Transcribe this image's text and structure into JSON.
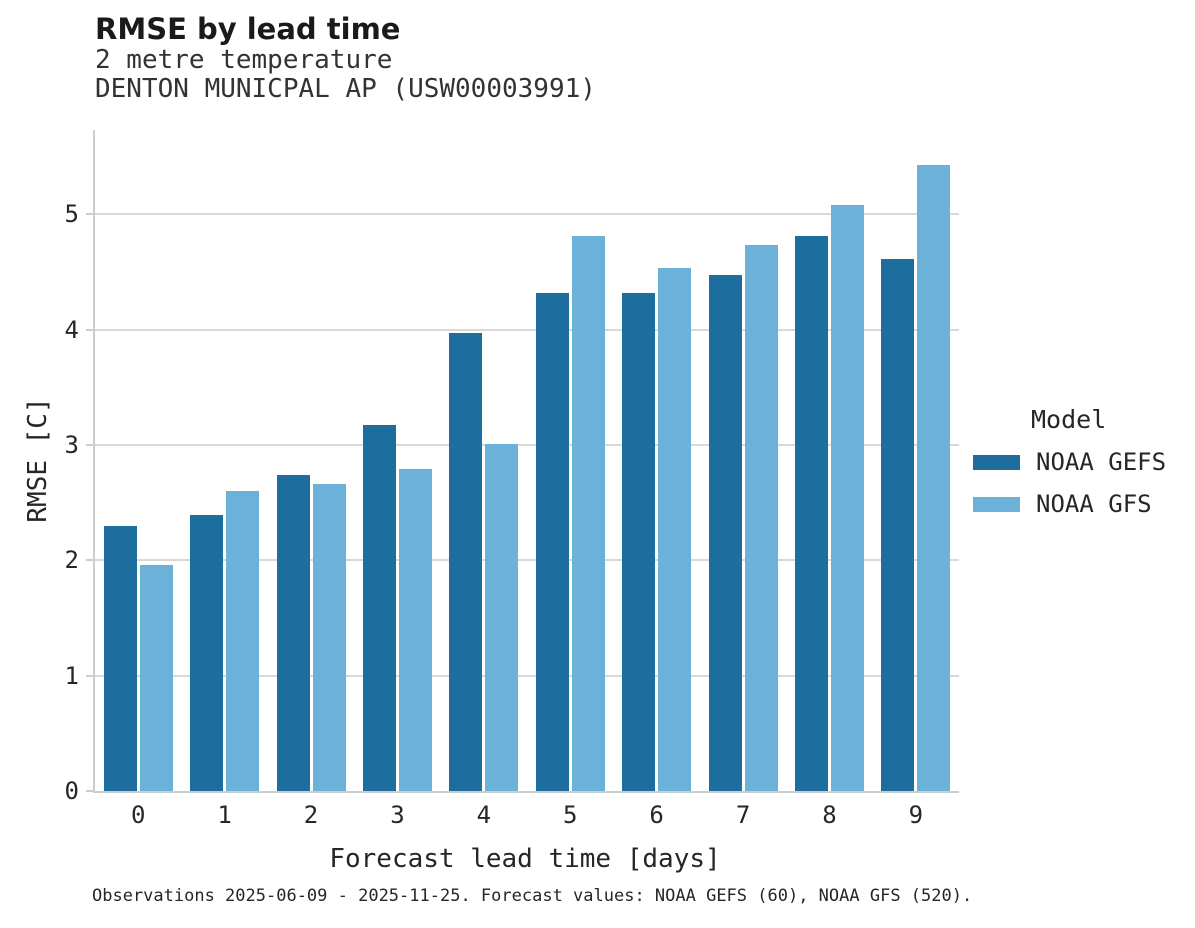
{
  "header": {
    "title": "RMSE by lead time",
    "subtitle1": "2 metre temperature",
    "subtitle2": "DENTON MUNICPAL AP (USW00003991)"
  },
  "axes": {
    "xlabel": "Forecast lead time [days]",
    "ylabel": "RMSE [C]"
  },
  "legend": {
    "title": "Model",
    "entries": [
      {
        "label": "NOAA GEFS",
        "color": "#1d6e9e"
      },
      {
        "label": "NOAA GFS",
        "color": "#6cb1d8"
      }
    ]
  },
  "footer": {
    "text": "Observations 2025-06-09 - 2025-11-25. Forecast values: NOAA GEFS (60), NOAA GFS (520)."
  },
  "colors": {
    "gefs_dark_blue": "#1d6e9e",
    "gfs_light_blue": "#6cb1d8",
    "gridline": "#d9d9d9",
    "axis_spine": "#c9ced1",
    "text": "#262626"
  },
  "chart_data": {
    "type": "bar",
    "title": "RMSE by lead time",
    "subtitle": "2 metre temperature, DENTON MUNICPAL AP (USW00003991)",
    "xlabel": "Forecast lead time [days]",
    "ylabel": "RMSE [C]",
    "categories": [
      "0",
      "1",
      "2",
      "3",
      "4",
      "5",
      "6",
      "7",
      "8",
      "9"
    ],
    "series": [
      {
        "name": "NOAA GEFS",
        "color": "#1d6e9e",
        "values": [
          2.3,
          2.39,
          2.74,
          3.17,
          3.97,
          4.32,
          4.32,
          4.47,
          4.81,
          4.61
        ]
      },
      {
        "name": "NOAA GFS",
        "color": "#6cb1d8",
        "values": [
          1.96,
          2.6,
          2.66,
          2.79,
          3.01,
          4.81,
          4.53,
          4.73,
          5.08,
          5.43
        ]
      }
    ],
    "yticks": [
      0,
      1,
      2,
      3,
      4,
      5
    ],
    "ylim": [
      0,
      5.73
    ],
    "grid": "horizontal",
    "legend_position": "right",
    "legend_title": "Model",
    "caption": "Observations 2025-06-09 - 2025-11-25. Forecast values: NOAA GEFS (60), NOAA GFS (520)."
  }
}
